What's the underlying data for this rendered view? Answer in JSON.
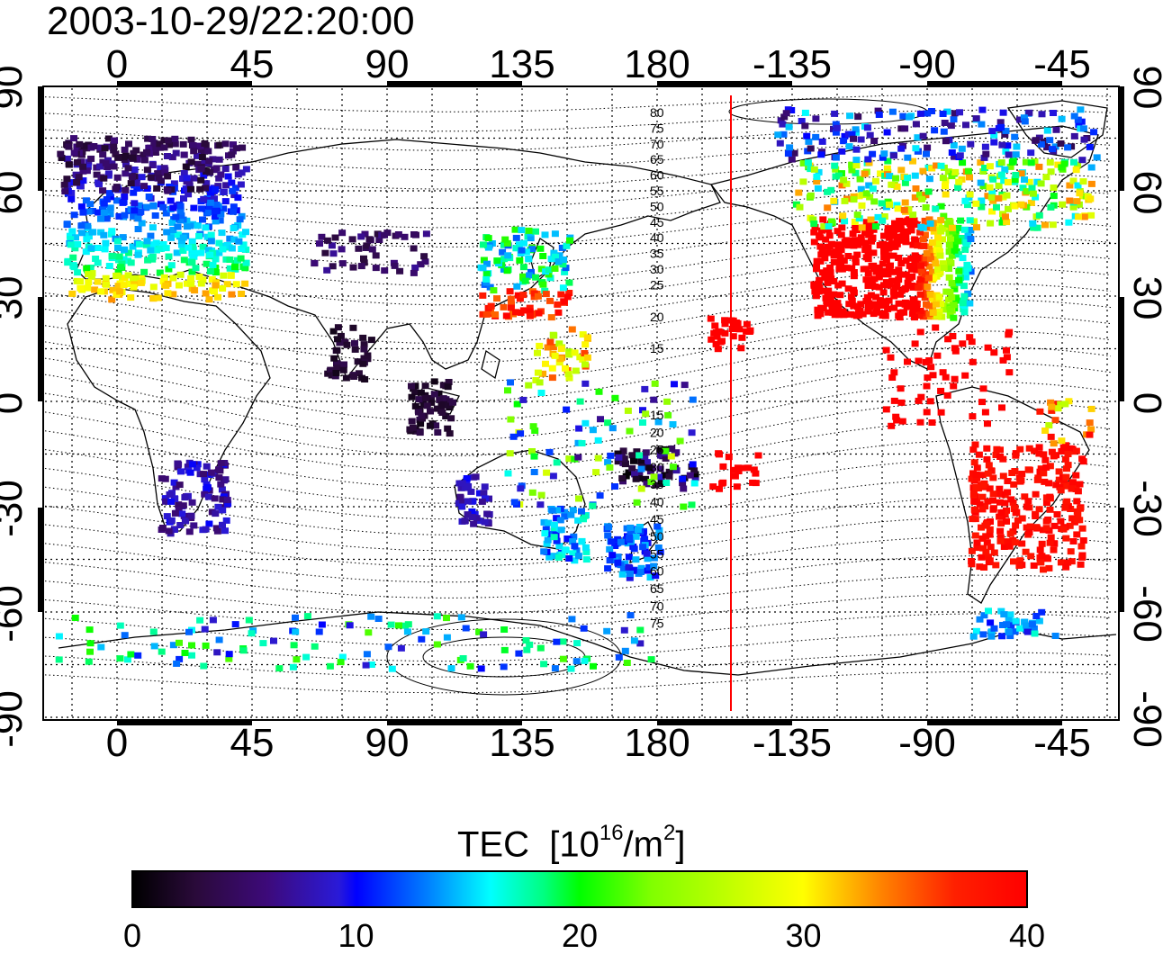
{
  "title": "2003-10-29/22:20:00",
  "lon_ticks": [
    "0",
    "45",
    "90",
    "135",
    "180",
    "-135",
    "-90",
    "-45"
  ],
  "lat_ticks": [
    "90",
    "60",
    "30",
    "0",
    "-30",
    "-60",
    "-90"
  ],
  "contour_labels_north": [
    "80",
    "75",
    "70",
    "65",
    "60",
    "55",
    "50",
    "45",
    "40",
    "35",
    "30",
    "25",
    "20",
    "15"
  ],
  "contour_labels_south": [
    "15",
    "20",
    "25",
    "30",
    "35",
    "40",
    "45",
    "50",
    "55",
    "60",
    "65",
    "70",
    "75"
  ],
  "colorbar": {
    "label": "TEC",
    "unit_base": "10",
    "unit_exp": "16",
    "unit_den": "/m",
    "unit_den_exp": "2",
    "ticks": [
      "0",
      "10",
      "20",
      "30",
      "40"
    ],
    "min": 0,
    "max": 40
  },
  "map": {
    "lon_range": [
      -25,
      335
    ],
    "lat_range": [
      -90,
      90
    ],
    "terminator_line_color": "#ff0000",
    "terminator_lon": 205
  }
}
